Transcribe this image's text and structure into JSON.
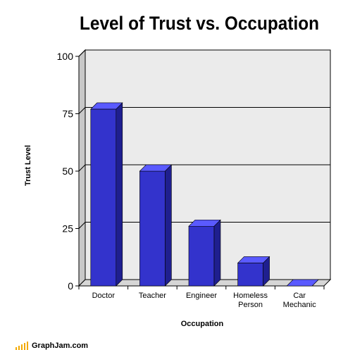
{
  "chart_data": {
    "type": "bar",
    "title": "Level of Trust vs. Occupation",
    "xlabel": "Occupation",
    "ylabel": "Trust Level",
    "categories": [
      "Doctor",
      "Teacher",
      "Engineer",
      "Homeless Person",
      "Car Mechanic"
    ],
    "category_lines": [
      [
        "Doctor"
      ],
      [
        "Teacher"
      ],
      [
        "Engineer"
      ],
      [
        "Homeless",
        "Person"
      ],
      [
        "Car",
        "Mechanic"
      ]
    ],
    "values": [
      77,
      50,
      26,
      10,
      0
    ],
    "ylim": [
      0,
      100
    ],
    "yticks": [
      "0",
      "25",
      "50",
      "75",
      "100"
    ],
    "grid": true,
    "legend": "none",
    "colors": {
      "bar_front": "#3333cc",
      "bar_side": "#1f1f8f",
      "bar_top": "#5a5aff",
      "plot_bg": "#ebebeb",
      "side_wall": "#c8c8c8"
    }
  },
  "brand": {
    "text": "GraphJam.com",
    "color": "#f2a900"
  }
}
